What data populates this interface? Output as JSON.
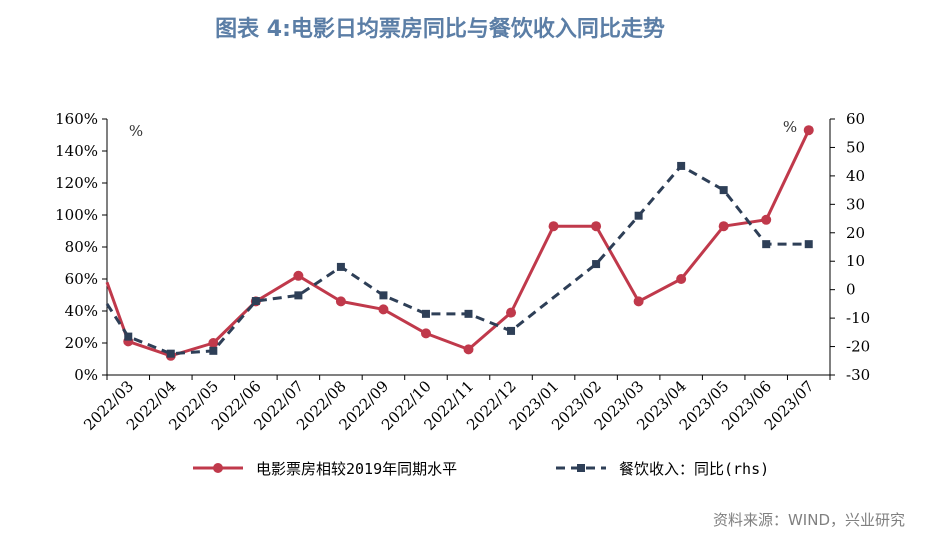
{
  "title": "图表 4:电影日均票房同比与餐饮收入同比走势",
  "source": "资料来源：WIND，兴业研究",
  "colors": {
    "box_office": "#c0394b",
    "catering": "#2e3f57",
    "title": "#5b7ea6",
    "source": "#808080"
  },
  "chart_data": {
    "type": "line",
    "categories": [
      "2022/03",
      "2022/04",
      "2022/05",
      "2022/06",
      "2022/07",
      "2022/08",
      "2022/09",
      "2022/10",
      "2022/11",
      "2022/12",
      "2023/01",
      "2023/02",
      "2023/03",
      "2023/04",
      "2023/05",
      "2023/06",
      "2023/07"
    ],
    "left_axis": {
      "unit": "%",
      "min": 0,
      "max": 160,
      "step": 20,
      "tick_labels": [
        "0%",
        "20%",
        "40%",
        "60%",
        "80%",
        "100%",
        "120%",
        "140%",
        "160%"
      ]
    },
    "right_axis": {
      "unit": "%",
      "min": -30,
      "max": 60,
      "step": 10,
      "tick_labels": [
        "-30",
        "-20",
        "-10",
        "0",
        "10",
        "20",
        "30",
        "40",
        "50",
        "60"
      ]
    },
    "series": [
      {
        "name": "电影票房相较2019年同期水平",
        "axis": "left",
        "style": "solid-circle",
        "lead_in_value": 58,
        "values": [
          21,
          12,
          20,
          46,
          62,
          46,
          41,
          26,
          16,
          39,
          93,
          93,
          46,
          60,
          93,
          97,
          153
        ]
      },
      {
        "name": "餐饮收入：同比(rhs)",
        "axis": "right",
        "style": "dashed-square",
        "lead_in_value": -5,
        "values": [
          -16.5,
          -22.5,
          -21.5,
          -4,
          -2,
          8,
          -2,
          -8.5,
          -8.5,
          -14.5,
          null,
          9,
          26,
          43.5,
          35,
          16,
          16
        ]
      }
    ]
  }
}
